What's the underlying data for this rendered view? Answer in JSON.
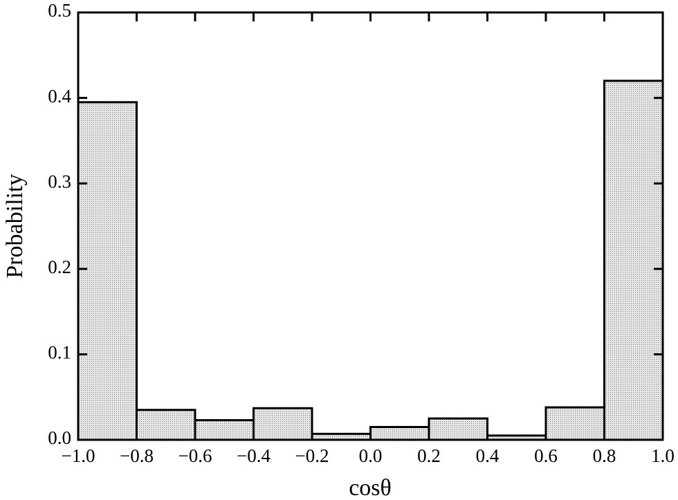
{
  "chart_data": {
    "type": "histogram",
    "x_label": "cosθ",
    "y_label": "Probability",
    "bins": [
      -1.0,
      -0.8,
      -0.6,
      -0.4,
      -0.2,
      0.0,
      0.2,
      0.4,
      0.6,
      0.8,
      1.0
    ],
    "values": [
      0.395,
      0.035,
      0.023,
      0.037,
      0.007,
      0.015,
      0.025,
      0.005,
      0.038,
      0.42
    ],
    "color": "#d4d4d4",
    "xlim": [
      -1.0,
      1.0
    ],
    "xticks": [
      {
        "value": -1.0,
        "label": "−1.0"
      },
      {
        "value": -0.8,
        "label": "−0.8"
      },
      {
        "value": -0.6,
        "label": "−0.6"
      },
      {
        "value": -0.4,
        "label": "−0.4"
      },
      {
        "value": -0.2,
        "label": "−0.2"
      },
      {
        "value": 0.0,
        "label": "0.0"
      },
      0.2,
      0.4,
      0.6,
      0.8,
      {
        "value": 1.0,
        "label": "1.0"
      }
    ],
    "ylim": [
      0,
      0.5
    ],
    "yticks": [
      {
        "value": 0,
        "label": "0.0"
      },
      0.1,
      0.2,
      0.3,
      0.4,
      0.5
    ]
  }
}
